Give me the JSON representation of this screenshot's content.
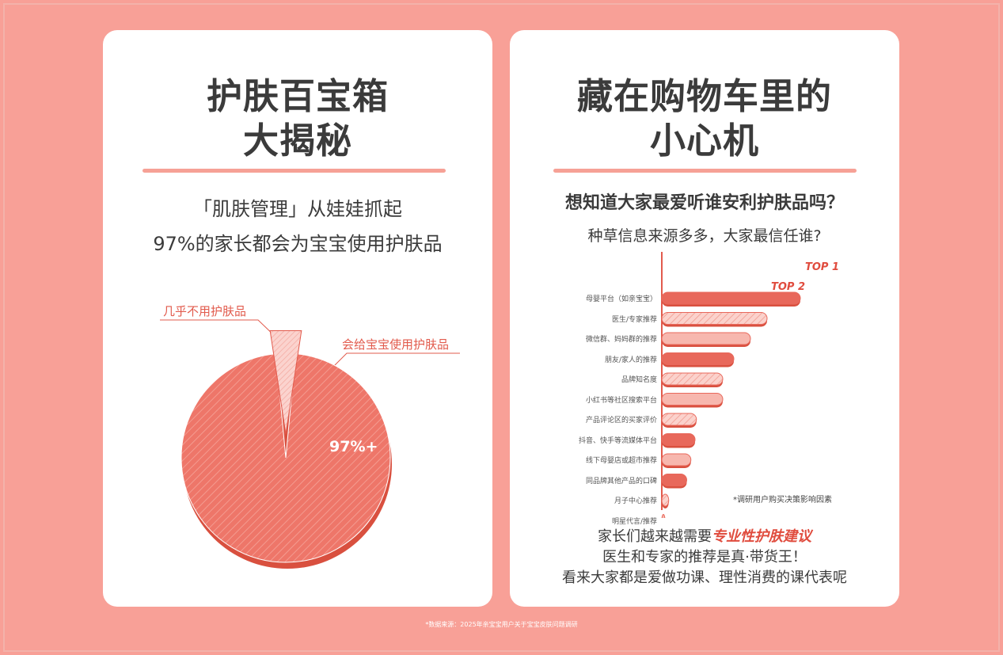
{
  "left": {
    "title_line1": "护肤百宝箱",
    "title_line2": "大揭秘",
    "sub_line1": "「肌肤管理」从娃娃抓起",
    "sub_line2": "97%的家长都会为宝宝使用护肤品",
    "pie_label_small": "几乎不用护肤品",
    "pie_label_large": "会给宝宝使用护肤品",
    "pie_value_label": "97%+"
  },
  "right": {
    "title_line1": "藏在购物车里的",
    "title_line2": "小心机",
    "question": "想知道大家最爱听谁安利护肤品吗？",
    "sub_question": "种草信息来源多多，大家最信任谁?",
    "top1": "TOP 1",
    "top2": "TOP 2",
    "footnote": "*调研用户购买决策影响因素",
    "conclusion_line1_a": "家长们越来越需要",
    "conclusion_line1_b": "专业性护肤建议",
    "conclusion_line2": "医生和专家的推荐是真·带货王！",
    "conclusion_line3": "看来大家都是爱做功课、理性消费的课代表呢"
  },
  "source": "*数据来源：2025年亲宝宝用户关于宝宝皮肤问题调研",
  "colors": {
    "background": "#f8a097",
    "accent": "#e25b4d",
    "bar_dark": "#e8685b",
    "bar_light": "#f7b7ae"
  },
  "chart_data": [
    {
      "type": "pie",
      "labels": [
        "会给宝宝使用护肤品",
        "几乎不用护肤品"
      ],
      "values": [
        97,
        3
      ],
      "data_labels": [
        "97%+",
        ""
      ]
    },
    {
      "type": "bar",
      "orientation": "horizontal",
      "categories": [
        "母婴平台（如亲宝宝）",
        "医生/专家推荐",
        "微信群、妈妈群的推荐",
        "朋友/家人的推荐",
        "品牌知名度",
        "小红书等社区搜索平台",
        "产品评论区的买家评价",
        "抖音、快手等流媒体平台",
        "线下母婴店或超市推荐",
        "同品牌其他产品的口碑",
        "月子中心推荐",
        "明星代言/推荐"
      ],
      "values": [
        100,
        76,
        64,
        52,
        44,
        44,
        25,
        24,
        21,
        18,
        5,
        2
      ],
      "styles": [
        "dark",
        "light-hatched",
        "light",
        "dark",
        "light-hatched",
        "light",
        "light-hatched",
        "dark",
        "light",
        "dark",
        "light-hatched",
        "light"
      ]
    }
  ]
}
